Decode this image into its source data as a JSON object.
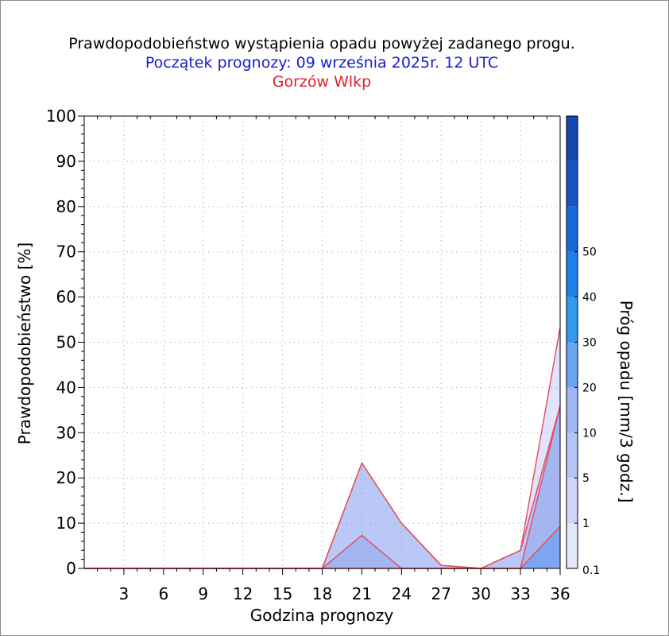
{
  "chart_data": {
    "type": "area",
    "title": "Prawdopodobieństwo wystąpienia opadu powyżej zadanego progu.",
    "subtitle": "Początek prognozy: 09 września 2025r. 12 UTC",
    "location": "Gorzów Wlkp",
    "xlabel": "Godzina prognozy",
    "ylabel": "Prawdopodobieństwo [%]",
    "xlim": [
      0,
      36
    ],
    "ylim": [
      0,
      100
    ],
    "xticks": [
      3,
      6,
      9,
      12,
      15,
      18,
      21,
      24,
      27,
      30,
      33,
      36
    ],
    "yticks": [
      0,
      10,
      20,
      30,
      40,
      50,
      60,
      70,
      80,
      90,
      100
    ],
    "grid": true,
    "x": [
      0,
      3,
      6,
      9,
      12,
      15,
      18,
      21,
      24,
      27,
      30,
      33,
      36
    ],
    "series": [
      {
        "threshold": 0.1,
        "color": "#dfe3fb",
        "values": [
          0,
          0,
          0,
          0,
          0,
          0,
          0,
          23.3,
          10,
          0.7,
          0,
          4,
          53.3
        ]
      },
      {
        "threshold": 1,
        "color": "#b9c8f6",
        "values": [
          0,
          0,
          0,
          0,
          0,
          0,
          0,
          23.3,
          10,
          0.7,
          0,
          4,
          36
        ]
      },
      {
        "threshold": 5,
        "color": "#a3b6f2",
        "values": [
          0,
          0,
          0,
          0,
          0,
          0,
          0,
          7.3,
          0,
          0,
          0,
          0,
          36
        ]
      },
      {
        "threshold": 10,
        "color": "#7ea6f0",
        "values": [
          0,
          0,
          0,
          0,
          0,
          0,
          0,
          0,
          0,
          0,
          0,
          0,
          9.3
        ]
      }
    ],
    "colorbar": {
      "label": "Próg opadu [mm/3 godz.]",
      "levels": [
        0.1,
        1,
        5,
        10,
        20,
        30,
        40,
        50
      ],
      "colors": [
        "#e4e8fb",
        "#cdd6f8",
        "#b5c5f5",
        "#9fb8f3",
        "#69a5f0",
        "#2f9af0",
        "#1d80e6",
        "#1869d6",
        "#1556c4",
        "#1446b0"
      ]
    }
  }
}
